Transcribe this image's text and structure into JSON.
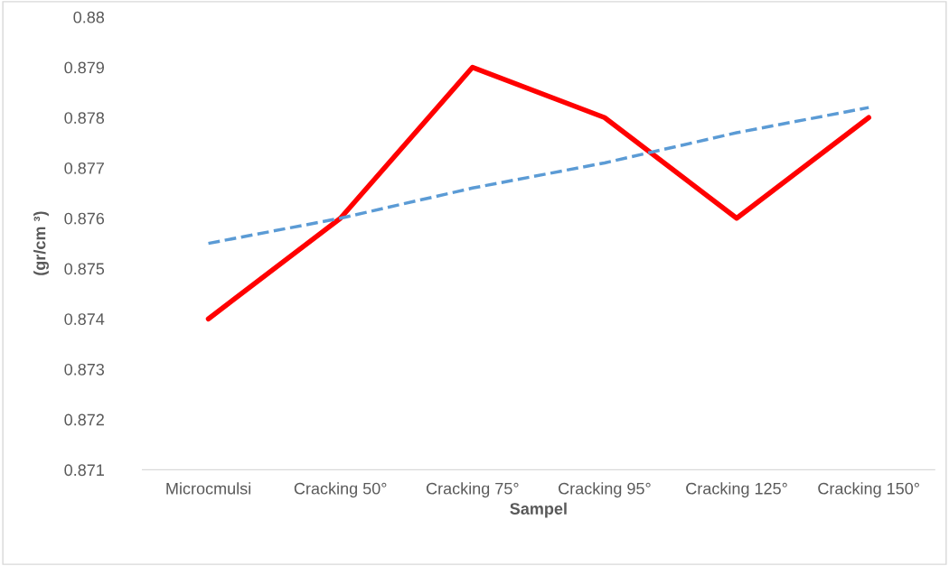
{
  "chart_data": {
    "type": "line",
    "xlabel": "Sampel",
    "ylabel": "(gr/cm ³)",
    "categories": [
      "Microcmulsi",
      "Cracking 50°",
      "Cracking 75°",
      "Cracking 95°",
      "Cracking 125°",
      "Cracking 150°"
    ],
    "series": [
      {
        "color": "#ff0000",
        "values": [
          0.874,
          0.876,
          0.879,
          0.878,
          0.876,
          0.878
        ],
        "line_style": "solid"
      },
      {
        "color": "#5b9bd5",
        "values": [
          0.8755,
          0.876,
          0.8766,
          0.8771,
          0.8777,
          0.8782
        ],
        "line_style": "dashed"
      }
    ],
    "ylim": [
      0.871,
      0.88
    ],
    "yticks": [
      0.871,
      0.872,
      0.873,
      0.874,
      0.875,
      0.876,
      0.877,
      0.878,
      0.879,
      0.88
    ],
    "grid": false,
    "marker": "none"
  }
}
